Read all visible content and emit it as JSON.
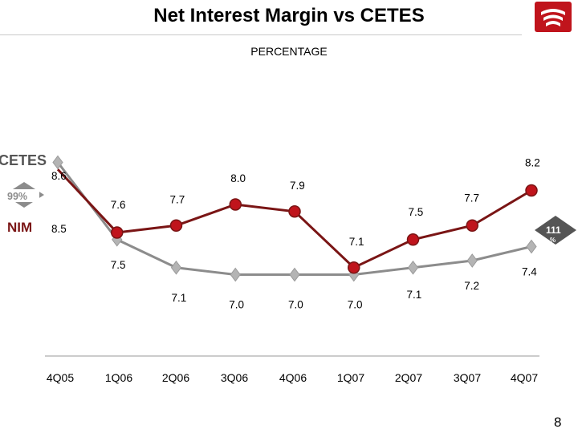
{
  "header": {
    "title": "Net Interest Margin vs CETES",
    "subtitle": "PERCENTAGE"
  },
  "footer": {
    "page_number": "8"
  },
  "colors": {
    "nim": "#7a1515",
    "nim_marker": "#c0141c",
    "cetes": "#8c8c8c",
    "cetes_marker": "#b4b4b4",
    "brand": "#c0141c"
  },
  "chart_data": {
    "type": "line",
    "categories": [
      "4Q05",
      "1Q06",
      "2Q06",
      "3Q06",
      "4Q06",
      "1Q07",
      "2Q07",
      "3Q07",
      "4Q07"
    ],
    "series": [
      {
        "name": "NIM",
        "values": [
          8.5,
          7.6,
          7.7,
          8.0,
          7.9,
          7.1,
          7.5,
          7.7,
          8.2
        ],
        "labels": [
          "8.5",
          "7.6",
          "7.7",
          "8.0",
          "7.9",
          "7.1",
          "7.5",
          "7.7",
          "8.2"
        ]
      },
      {
        "name": "CETES",
        "values": [
          8.6,
          7.5,
          7.1,
          7.0,
          7.0,
          7.0,
          7.1,
          7.2,
          7.4
        ],
        "labels": [
          "8.6",
          "7.5",
          "7.1",
          "7.0",
          "7.0",
          "7.0",
          "7.1",
          "7.2",
          "7.4"
        ]
      }
    ],
    "ylim": [
      6.4,
      9.2
    ],
    "legend": {
      "cetes_label": "CETES",
      "nim_label": "NIM",
      "left_badge": "99%",
      "right_badge": "111",
      "right_badge_unit": "%"
    }
  }
}
